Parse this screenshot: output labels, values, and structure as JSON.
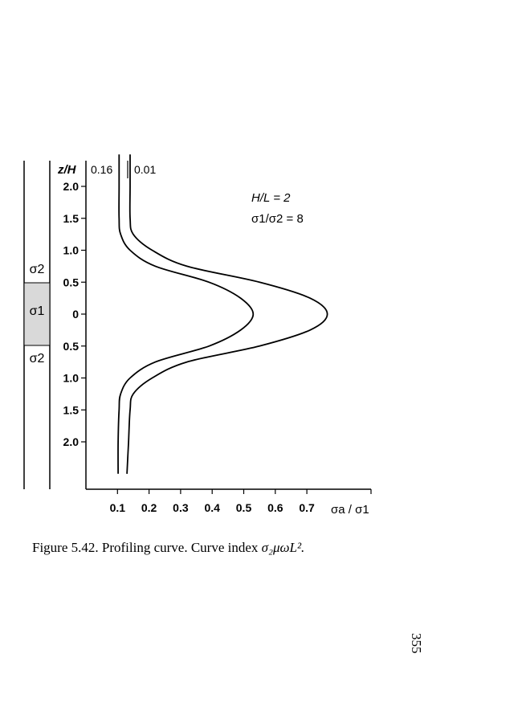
{
  "chart_data": {
    "type": "line",
    "title": "",
    "ylabel": "z/H",
    "xlabel": "σa / σ1",
    "x_ticks": [
      0.1,
      0.2,
      0.3,
      0.4,
      0.5,
      0.6,
      0.7
    ],
    "x_tick_labels": [
      "0.1",
      "0.2",
      "0.3",
      "0.4",
      "0.5",
      "0.6",
      "0.7"
    ],
    "xlim": [
      0.0,
      0.8
    ],
    "y_tick_labels_upper": [
      "2.0",
      "1.5",
      "1.0",
      "0.5",
      "0"
    ],
    "y_tick_labels_lower": [
      "0.5",
      "1.0",
      "1.5",
      "2.0"
    ],
    "ylim": [
      -2.5,
      2.5
    ],
    "annotations": [
      "H/L = 2",
      "σ1/σ2 = 8"
    ],
    "layer_labels": [
      "σ2",
      "σ1",
      "σ2"
    ],
    "series": [
      {
        "name": "0.16",
        "z": [
          2.5,
          2.0,
          1.5,
          1.25,
          1.0,
          0.75,
          0.5,
          0.25,
          0.0,
          -0.25,
          -0.5,
          -0.75,
          -1.0,
          -1.25,
          -1.5,
          -2.0,
          -2.5
        ],
        "values": [
          0.105,
          0.105,
          0.105,
          0.11,
          0.14,
          0.22,
          0.39,
          0.49,
          0.53,
          0.49,
          0.39,
          0.22,
          0.14,
          0.11,
          0.105,
          0.102,
          0.102
        ]
      },
      {
        "name": "0.01",
        "z": [
          2.5,
          2.0,
          1.5,
          1.25,
          1.0,
          0.75,
          0.5,
          0.25,
          0.0,
          -0.25,
          -0.5,
          -0.75,
          -1.0,
          -1.25,
          -1.5,
          -2.0,
          -2.5
        ],
        "values": [
          0.14,
          0.14,
          0.14,
          0.15,
          0.21,
          0.32,
          0.55,
          0.71,
          0.765,
          0.71,
          0.55,
          0.32,
          0.21,
          0.15,
          0.14,
          0.135,
          0.13
        ]
      }
    ]
  },
  "caption": {
    "prefix": "Figure 5.42. Profiling curve. Curve index ",
    "formula": "σ₂μωL²."
  },
  "page_number": "355"
}
